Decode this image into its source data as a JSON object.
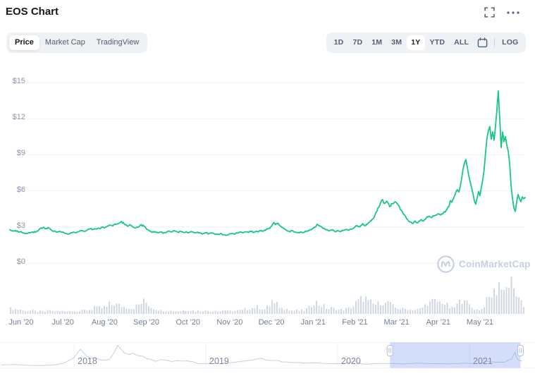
{
  "header": {
    "title": "EOS Chart",
    "icons": [
      "fullscreen-icon",
      "more-options-icon"
    ]
  },
  "toolbar": {
    "tabs": [
      "Price",
      "Market Cap",
      "TradingView"
    ],
    "active_tab": "Price",
    "ranges": [
      "1D",
      "7D",
      "1M",
      "3M",
      "1Y",
      "YTD",
      "ALL"
    ],
    "active_range": "1Y",
    "calendar_icon": "calendar-icon",
    "log_label": "LOG"
  },
  "watermark": {
    "text": "CoinMarketCap",
    "logo_icon": "coinmarketcap-logo-icon"
  },
  "colors": {
    "line": "#16c784",
    "volume": "#d2d8e3",
    "grid": "#eff2f6",
    "selection": "rgba(113,141,238,0.3)",
    "navigator_line": "#c7cfdf"
  },
  "chart_data": {
    "type": "line",
    "title": "EOS price, 1Y range (Jun 2020 - May 2021)",
    "x_unit": "days since Jun 1 2020",
    "ylim": [
      0,
      15
    ],
    "grid": true,
    "noise_amp": 0.022,
    "y_ticks": [
      {
        "label": "$15",
        "value": 15
      },
      {
        "label": "$12",
        "value": 12
      },
      {
        "label": "$9",
        "value": 9
      },
      {
        "label": "$6",
        "value": 6
      },
      {
        "label": "$3",
        "value": 3
      },
      {
        "label": "$0",
        "value": 0
      }
    ],
    "x_labels": [
      "Jun '20",
      "Jul '20",
      "Aug '20",
      "Sep '20",
      "Oct '20",
      "Nov '20",
      "Dec '20",
      "Jan '21",
      "Feb '21",
      "Mar '21",
      "Apr '21",
      "May '21"
    ],
    "series": [
      [
        0,
        2.78
      ],
      [
        2,
        2.66
      ],
      [
        4,
        2.72
      ],
      [
        6,
        2.58
      ],
      [
        8,
        2.62
      ],
      [
        10,
        2.5
      ],
      [
        12,
        2.46
      ],
      [
        14,
        2.52
      ],
      [
        16,
        2.6
      ],
      [
        18,
        2.55
      ],
      [
        20,
        2.68
      ],
      [
        22,
        2.92
      ],
      [
        24,
        2.98
      ],
      [
        25,
        2.86
      ],
      [
        27,
        2.96
      ],
      [
        29,
        2.78
      ],
      [
        31,
        2.64
      ],
      [
        33,
        2.58
      ],
      [
        35,
        2.64
      ],
      [
        37,
        2.56
      ],
      [
        39,
        2.48
      ],
      [
        41,
        2.42
      ],
      [
        43,
        2.5
      ],
      [
        45,
        2.58
      ],
      [
        47,
        2.52
      ],
      [
        49,
        2.62
      ],
      [
        51,
        2.7
      ],
      [
        53,
        2.64
      ],
      [
        55,
        2.76
      ],
      [
        57,
        2.86
      ],
      [
        59,
        2.8
      ],
      [
        61,
        2.85
      ],
      [
        63,
        2.9
      ],
      [
        65,
        2.98
      ],
      [
        67,
        2.92
      ],
      [
        69,
        3.05
      ],
      [
        71,
        3.15
      ],
      [
        73,
        3.1
      ],
      [
        75,
        3.22
      ],
      [
        77,
        3.3
      ],
      [
        79,
        3.46
      ],
      [
        81,
        3.25
      ],
      [
        83,
        3.1
      ],
      [
        85,
        3.2
      ],
      [
        87,
        3.02
      ],
      [
        89,
        2.92
      ],
      [
        91,
        2.98
      ],
      [
        93,
        3.2
      ],
      [
        95,
        3.05
      ],
      [
        97,
        2.8
      ],
      [
        99,
        2.66
      ],
      [
        101,
        2.56
      ],
      [
        103,
        2.62
      ],
      [
        105,
        2.52
      ],
      [
        107,
        2.58
      ],
      [
        109,
        2.5
      ],
      [
        111,
        2.56
      ],
      [
        113,
        2.64
      ],
      [
        115,
        2.6
      ],
      [
        117,
        2.66
      ],
      [
        119,
        2.58
      ],
      [
        121,
        2.64
      ],
      [
        123,
        2.56
      ],
      [
        125,
        2.62
      ],
      [
        127,
        2.54
      ],
      [
        129,
        2.6
      ],
      [
        131,
        2.52
      ],
      [
        133,
        2.58
      ],
      [
        135,
        2.5
      ],
      [
        137,
        2.46
      ],
      [
        139,
        2.52
      ],
      [
        141,
        2.44
      ],
      [
        143,
        2.5
      ],
      [
        145,
        2.42
      ],
      [
        147,
        2.38
      ],
      [
        149,
        2.44
      ],
      [
        151,
        2.36
      ],
      [
        153,
        2.3
      ],
      [
        155,
        2.38
      ],
      [
        157,
        2.46
      ],
      [
        159,
        2.4
      ],
      [
        161,
        2.5
      ],
      [
        163,
        2.58
      ],
      [
        165,
        2.52
      ],
      [
        167,
        2.6
      ],
      [
        169,
        2.55
      ],
      [
        171,
        2.62
      ],
      [
        173,
        2.56
      ],
      [
        175,
        2.64
      ],
      [
        177,
        2.7
      ],
      [
        179,
        2.64
      ],
      [
        181,
        2.72
      ],
      [
        183,
        2.85
      ],
      [
        185,
        3.05
      ],
      [
        187,
        3.38
      ],
      [
        188,
        3.2
      ],
      [
        190,
        3.32
      ],
      [
        192,
        3.05
      ],
      [
        194,
        2.88
      ],
      [
        196,
        2.72
      ],
      [
        198,
        2.62
      ],
      [
        200,
        2.7
      ],
      [
        202,
        2.58
      ],
      [
        204,
        2.52
      ],
      [
        206,
        2.6
      ],
      [
        208,
        2.55
      ],
      [
        210,
        2.64
      ],
      [
        212,
        2.72
      ],
      [
        214,
        2.8
      ],
      [
        216,
        3.0
      ],
      [
        218,
        3.22
      ],
      [
        220,
        3.05
      ],
      [
        222,
        2.88
      ],
      [
        224,
        2.76
      ],
      [
        226,
        2.68
      ],
      [
        228,
        2.76
      ],
      [
        230,
        2.64
      ],
      [
        232,
        2.7
      ],
      [
        234,
        2.62
      ],
      [
        236,
        2.7
      ],
      [
        238,
        2.78
      ],
      [
        240,
        2.72
      ],
      [
        242,
        2.82
      ],
      [
        244,
        2.95
      ],
      [
        246,
        3.1
      ],
      [
        248,
        3.02
      ],
      [
        250,
        3.28
      ],
      [
        252,
        3.12
      ],
      [
        254,
        3.35
      ],
      [
        256,
        3.52
      ],
      [
        258,
        3.8
      ],
      [
        260,
        4.3
      ],
      [
        262,
        4.8
      ],
      [
        264,
        5.28
      ],
      [
        265,
        4.95
      ],
      [
        267,
        5.15
      ],
      [
        269,
        4.7
      ],
      [
        271,
        4.95
      ],
      [
        273,
        5.1
      ],
      [
        275,
        4.85
      ],
      [
        277,
        4.4
      ],
      [
        279,
        4.05
      ],
      [
        281,
        3.7
      ],
      [
        283,
        3.45
      ],
      [
        285,
        3.3
      ],
      [
        287,
        3.5
      ],
      [
        289,
        3.35
      ],
      [
        291,
        3.6
      ],
      [
        293,
        3.5
      ],
      [
        295,
        3.75
      ],
      [
        297,
        3.9
      ],
      [
        299,
        3.8
      ],
      [
        301,
        3.95
      ],
      [
        303,
        4.08
      ],
      [
        305,
        4.0
      ],
      [
        307,
        4.15
      ],
      [
        309,
        4.35
      ],
      [
        311,
        4.7
      ],
      [
        312,
        5.2
      ],
      [
        313,
        5.05
      ],
      [
        315,
        5.6
      ],
      [
        317,
        6.1
      ],
      [
        318,
        5.9
      ],
      [
        320,
        7.0
      ],
      [
        321,
        7.8
      ],
      [
        322,
        8.3
      ],
      [
        323,
        8.6
      ],
      [
        324,
        8.0
      ],
      [
        325,
        7.3
      ],
      [
        326,
        6.8
      ],
      [
        327,
        6.3
      ],
      [
        328,
        5.8
      ],
      [
        329,
        5.2
      ],
      [
        330,
        4.9
      ],
      [
        331,
        5.4
      ],
      [
        332,
        5.95
      ],
      [
        333,
        5.6
      ],
      [
        334,
        6.3
      ],
      [
        335,
        6.9
      ],
      [
        336,
        7.8
      ],
      [
        337,
        9.2
      ],
      [
        338,
        10.4
      ],
      [
        339,
        11.0
      ],
      [
        340,
        11.35
      ],
      [
        341,
        10.3
      ],
      [
        342,
        10.9
      ],
      [
        343,
        10.2
      ],
      [
        344,
        11.3
      ],
      [
        345,
        12.7
      ],
      [
        346,
        14.3
      ],
      [
        347,
        12.0
      ],
      [
        348,
        9.6
      ],
      [
        349,
        10.9
      ],
      [
        350,
        10.1
      ],
      [
        351,
        10.5
      ],
      [
        352,
        9.8
      ],
      [
        353,
        9.3
      ],
      [
        354,
        8.3
      ],
      [
        355,
        6.5
      ],
      [
        356,
        5.4
      ],
      [
        357,
        4.6
      ],
      [
        358,
        4.3
      ],
      [
        359,
        5.1
      ],
      [
        360,
        5.7
      ],
      [
        361,
        5.35
      ],
      [
        362,
        5.1
      ],
      [
        363,
        5.5
      ],
      [
        364,
        5.35
      ],
      [
        365,
        5.45
      ]
    ],
    "volume": {
      "unit": "relative 0-1",
      "envelope": [
        [
          0,
          0.14
        ],
        [
          10,
          0.12
        ],
        [
          20,
          0.11
        ],
        [
          30,
          0.1
        ],
        [
          40,
          0.11
        ],
        [
          55,
          0.13
        ],
        [
          62,
          0.22
        ],
        [
          68,
          0.28
        ],
        [
          74,
          0.32
        ],
        [
          80,
          0.22
        ],
        [
          86,
          0.18
        ],
        [
          92,
          0.44
        ],
        [
          96,
          0.5
        ],
        [
          100,
          0.26
        ],
        [
          106,
          0.15
        ],
        [
          115,
          0.12
        ],
        [
          125,
          0.11
        ],
        [
          135,
          0.12
        ],
        [
          145,
          0.1
        ],
        [
          152,
          0.1
        ],
        [
          160,
          0.11
        ],
        [
          168,
          0.14
        ],
        [
          174,
          0.22
        ],
        [
          180,
          0.16
        ],
        [
          185,
          0.32
        ],
        [
          188,
          0.3
        ],
        [
          192,
          0.2
        ],
        [
          198,
          0.13
        ],
        [
          205,
          0.12
        ],
        [
          211,
          0.16
        ],
        [
          215,
          0.34
        ],
        [
          219,
          0.38
        ],
        [
          223,
          0.26
        ],
        [
          228,
          0.16
        ],
        [
          234,
          0.13
        ],
        [
          240,
          0.2
        ],
        [
          245,
          0.34
        ],
        [
          249,
          0.44
        ],
        [
          253,
          0.48
        ],
        [
          257,
          0.44
        ],
        [
          261,
          0.4
        ],
        [
          265,
          0.36
        ],
        [
          269,
          0.32
        ],
        [
          273,
          0.26
        ],
        [
          277,
          0.2
        ],
        [
          281,
          0.16
        ],
        [
          285,
          0.14
        ],
        [
          290,
          0.15
        ],
        [
          294,
          0.3
        ],
        [
          298,
          0.4
        ],
        [
          302,
          0.44
        ],
        [
          306,
          0.38
        ],
        [
          310,
          0.22
        ],
        [
          313,
          0.16
        ],
        [
          316,
          0.3
        ],
        [
          319,
          0.42
        ],
        [
          322,
          0.4
        ],
        [
          325,
          0.3
        ],
        [
          328,
          0.18
        ],
        [
          331,
          0.15
        ],
        [
          334,
          0.2
        ],
        [
          337,
          0.45
        ],
        [
          340,
          0.75
        ],
        [
          342,
          0.85
        ],
        [
          344,
          0.95
        ],
        [
          346,
          1.0
        ],
        [
          348,
          1.0
        ],
        [
          350,
          0.85
        ],
        [
          352,
          0.8
        ],
        [
          354,
          0.95
        ],
        [
          356,
          0.75
        ],
        [
          358,
          0.65
        ],
        [
          360,
          0.55
        ],
        [
          362,
          0.4
        ],
        [
          364,
          0.3
        ],
        [
          365,
          0.25
        ]
      ]
    },
    "navigator": {
      "years": [
        "2018",
        "2019",
        "2020",
        "2021"
      ],
      "series": [
        [
          2017.45,
          1.2
        ],
        [
          2017.55,
          1.6
        ],
        [
          2017.65,
          0.8
        ],
        [
          2017.75,
          0.6
        ],
        [
          2017.85,
          1.2
        ],
        [
          2017.92,
          3.0
        ],
        [
          2017.97,
          6.5
        ],
        [
          2018.0,
          8.5
        ],
        [
          2018.03,
          14.5
        ],
        [
          2018.05,
          17.5
        ],
        [
          2018.08,
          13.0
        ],
        [
          2018.1,
          10.0
        ],
        [
          2018.13,
          8.0
        ],
        [
          2018.16,
          9.0
        ],
        [
          2018.2,
          6.5
        ],
        [
          2018.24,
          6.0
        ],
        [
          2018.27,
          7.5
        ],
        [
          2018.3,
          13.0
        ],
        [
          2018.33,
          21.5
        ],
        [
          2018.36,
          17.0
        ],
        [
          2018.38,
          14.0
        ],
        [
          2018.42,
          12.0
        ],
        [
          2018.45,
          13.5
        ],
        [
          2018.48,
          11.0
        ],
        [
          2018.52,
          10.5
        ],
        [
          2018.55,
          8.0
        ],
        [
          2018.58,
          7.2
        ],
        [
          2018.62,
          5.0
        ],
        [
          2018.66,
          6.8
        ],
        [
          2018.7,
          6.2
        ],
        [
          2018.74,
          4.8
        ],
        [
          2018.78,
          5.6
        ],
        [
          2018.82,
          5.2
        ],
        [
          2018.86,
          5.4
        ],
        [
          2018.9,
          4.6
        ],
        [
          2018.94,
          2.8
        ],
        [
          2018.98,
          2.5
        ],
        [
          2019.02,
          2.4
        ],
        [
          2019.06,
          2.9
        ],
        [
          2019.1,
          2.6
        ],
        [
          2019.15,
          3.2
        ],
        [
          2019.2,
          3.7
        ],
        [
          2019.25,
          4.6
        ],
        [
          2019.3,
          5.5
        ],
        [
          2019.35,
          6.2
        ],
        [
          2019.4,
          7.8
        ],
        [
          2019.42,
          8.3
        ],
        [
          2019.46,
          6.2
        ],
        [
          2019.5,
          5.8
        ],
        [
          2019.54,
          6.1
        ],
        [
          2019.58,
          4.4
        ],
        [
          2019.62,
          4.2
        ],
        [
          2019.66,
          3.6
        ],
        [
          2019.7,
          3.9
        ],
        [
          2019.75,
          3.1
        ],
        [
          2019.8,
          3.5
        ],
        [
          2019.85,
          3.3
        ],
        [
          2019.9,
          2.7
        ],
        [
          2019.95,
          2.6
        ],
        [
          2020.0,
          2.6
        ],
        [
          2020.05,
          3.0
        ],
        [
          2020.1,
          4.3
        ],
        [
          2020.14,
          4.6
        ],
        [
          2020.18,
          2.4
        ],
        [
          2020.21,
          1.9
        ],
        [
          2020.26,
          2.5
        ],
        [
          2020.3,
          2.8
        ],
        [
          2020.35,
          2.7
        ],
        [
          2020.4,
          2.7
        ],
        [
          2020.45,
          2.5
        ],
        [
          2020.5,
          2.4
        ],
        [
          2020.55,
          2.6
        ],
        [
          2020.6,
          3.1
        ],
        [
          2020.65,
          2.9
        ],
        [
          2020.7,
          2.6
        ],
        [
          2020.75,
          2.6
        ],
        [
          2020.8,
          2.5
        ],
        [
          2020.85,
          2.4
        ],
        [
          2020.9,
          2.6
        ],
        [
          2020.95,
          3.1
        ],
        [
          2021.0,
          2.8
        ],
        [
          2021.04,
          2.7
        ],
        [
          2021.08,
          3.0
        ],
        [
          2021.1,
          3.2
        ],
        [
          2021.13,
          4.9
        ],
        [
          2021.16,
          4.4
        ],
        [
          2021.2,
          4.0
        ],
        [
          2021.24,
          4.2
        ],
        [
          2021.27,
          4.1
        ],
        [
          2021.3,
          6.5
        ],
        [
          2021.32,
          7.5
        ],
        [
          2021.345,
          14.3
        ],
        [
          2021.36,
          8.0
        ],
        [
          2021.375,
          6.2
        ],
        [
          2021.39,
          5.5
        ],
        [
          2021.4,
          5.0
        ]
      ],
      "selection": {
        "start_year": 2020.397,
        "end_year": 2021.387
      }
    }
  }
}
